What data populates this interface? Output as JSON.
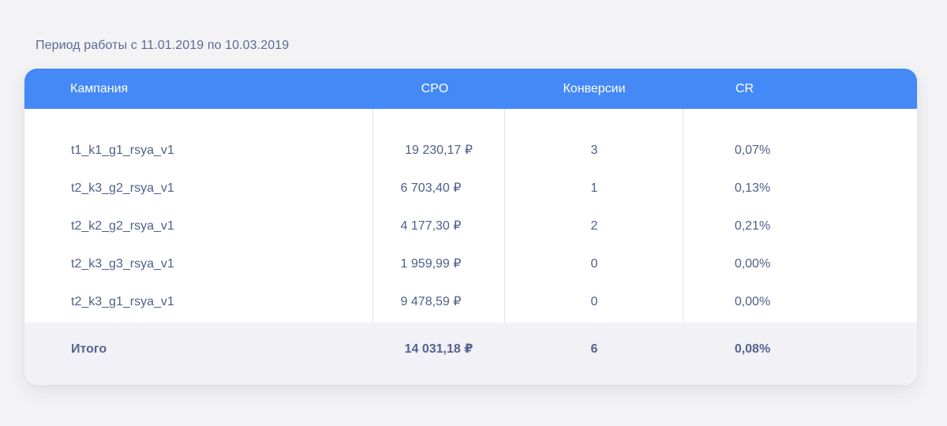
{
  "period": "Период работы с 11.01.2019 по 10.03.2019",
  "table": {
    "columns": {
      "campaign": "Кампания",
      "cpo": "CPO",
      "conversions": "Конверсии",
      "cr": "CR"
    },
    "rows": [
      {
        "campaign": "t1_k1_g1_rsya_v1",
        "cpo": "19 230,17 ₽",
        "conversions": "3",
        "cr": "0,07%"
      },
      {
        "campaign": "t2_k3_g2_rsya_v1",
        "cpo": "6 703,40 ₽",
        "conversions": "1",
        "cr": "0,13%"
      },
      {
        "campaign": "t2_k2_g2_rsya_v1",
        "cpo": "4 177,30 ₽",
        "conversions": "2",
        "cr": "0,21%"
      },
      {
        "campaign": "t2_k3_g3_rsya_v1",
        "cpo": "1 959,99 ₽",
        "conversions": "0",
        "cr": "0,00%"
      },
      {
        "campaign": "t2_k3_g1_rsya_v1",
        "cpo": "9 478,59 ₽",
        "conversions": "0",
        "cr": "0,00%"
      }
    ],
    "total": {
      "label": "Итого",
      "cpo": "14 031,18 ₽",
      "conversions": "6",
      "cr": "0,08%"
    }
  },
  "colors": {
    "header_bg": "#4489f5",
    "text": "#4f5f8a",
    "total_bg": "#f1f1f6",
    "page_bg": "#f3f3f5"
  }
}
